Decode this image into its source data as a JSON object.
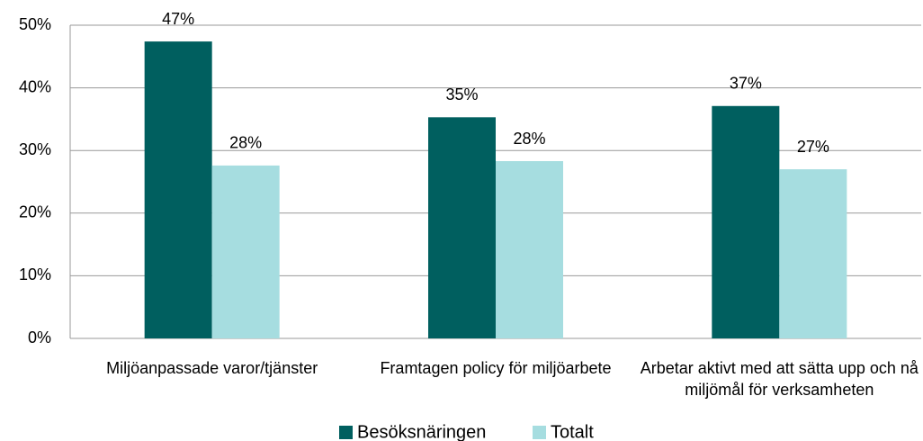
{
  "chart_data": {
    "type": "bar",
    "categories": [
      "Miljöanpassade varor/tjänster",
      "Framtagen policy för miljöarbete",
      "Arbetar aktivt med att sätta upp och nå miljömål för verksamheten"
    ],
    "series": [
      {
        "name": "Besöksnäringen",
        "color": "#005f5f",
        "values": [
          47.4,
          35.3,
          37.1
        ],
        "value_labels": [
          "47%",
          "35%",
          "37%"
        ]
      },
      {
        "name": "Totalt",
        "color": "#a6dde0",
        "values": [
          27.6,
          28.3,
          27.0
        ],
        "value_labels": [
          "28%",
          "28%",
          "27%"
        ]
      }
    ],
    "ylim": [
      0,
      50
    ],
    "yticks": [
      {
        "value": 0,
        "label": "0%"
      },
      {
        "value": 10,
        "label": "10%"
      },
      {
        "value": 20,
        "label": "20%"
      },
      {
        "value": 30,
        "label": "30%"
      },
      {
        "value": 40,
        "label": "40%"
      },
      {
        "value": 50,
        "label": "50%"
      }
    ],
    "grid": true,
    "legend": "bottom"
  }
}
